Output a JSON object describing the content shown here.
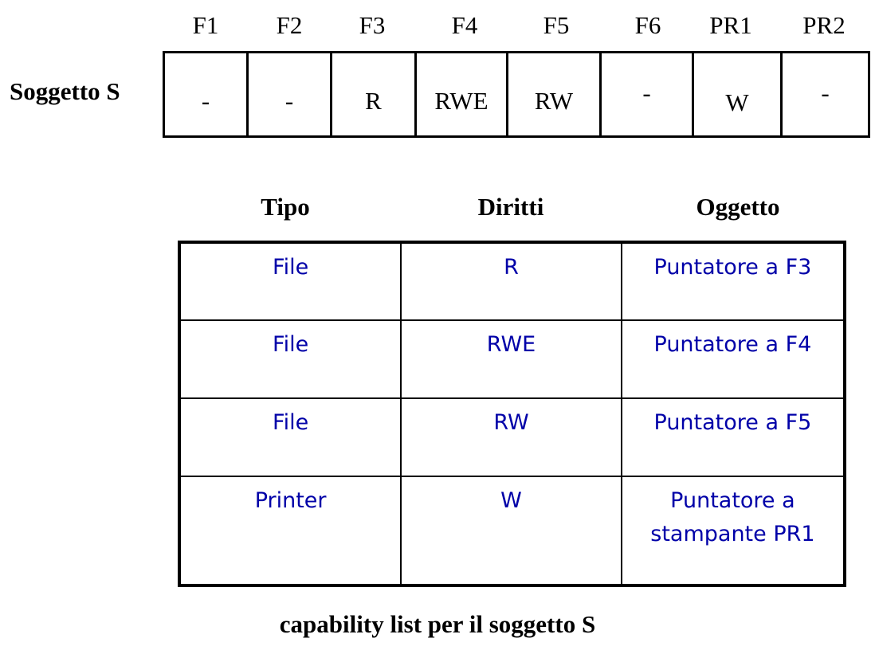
{
  "access_matrix": {
    "row_label": "Soggetto S",
    "columns": [
      "F1",
      "F2",
      "F3",
      "F4",
      "F5",
      "F6",
      "PR1",
      "PR2"
    ],
    "cells": [
      "-",
      "-",
      "R",
      "RWE",
      "RW",
      "-",
      "W",
      "-"
    ]
  },
  "capability_list": {
    "headers": {
      "tipo": "Tipo",
      "diritti": "Diritti",
      "oggetto": "Oggetto"
    },
    "rows": [
      {
        "tipo": "File",
        "diritti": "R",
        "oggetto": "Puntatore a F3"
      },
      {
        "tipo": "File",
        "diritti": "RWE",
        "oggetto": "Puntatore a F4"
      },
      {
        "tipo": "File",
        "diritti": "RW",
        "oggetto": "Puntatore a F5"
      },
      {
        "tipo": "Printer",
        "diritti": "W",
        "oggetto": "Puntatore a stampante PR1"
      }
    ],
    "text_color": "#0000a8",
    "caption": "capability list per il soggetto S"
  }
}
